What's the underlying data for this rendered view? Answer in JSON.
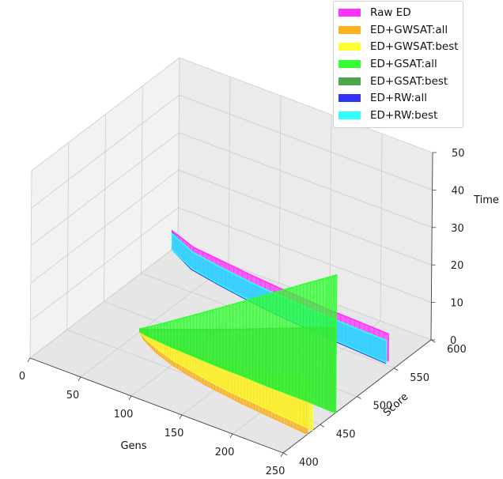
{
  "chart_data": {
    "type": "area",
    "projection": "3d",
    "title": "",
    "xlabel": "Gens",
    "ylabel": "Score",
    "zlabel": "Time",
    "xlim": [
      0,
      250
    ],
    "ylim": [
      400,
      600
    ],
    "zlim": [
      0,
      50
    ],
    "xticks": [
      "0",
      "50",
      "100",
      "150",
      "200",
      "250"
    ],
    "yticks": [
      "400",
      "450",
      "500",
      "550",
      "600"
    ],
    "zticks": [
      "0",
      "10",
      "20",
      "30",
      "40",
      "50"
    ],
    "grid": true,
    "legend_position": "top-right",
    "series": [
      {
        "name": "Raw ED",
        "color": "#ff33ff",
        "gens": [
          0,
          30,
          60,
          90,
          120,
          150,
          180,
          210,
          240
        ],
        "score": [
          592,
          580,
          575,
          570,
          566,
          563,
          560,
          558,
          556
        ],
        "time": [
          5.0,
          5.4,
          5.8,
          6.1,
          6.4,
          6.6,
          6.8,
          7.0,
          7.2
        ]
      },
      {
        "name": "ED+GWSAT:all",
        "color": "#ffb21f",
        "gens": [
          50,
          60,
          80,
          100,
          120,
          140,
          160,
          180,
          200,
          220,
          240,
          250
        ],
        "score": [
          480,
          472,
          462,
          455,
          450,
          446,
          443,
          440,
          438,
          436,
          434,
          433
        ],
        "time": [
          0.8,
          1.8,
          3.3,
          4.8,
          6.2,
          7.6,
          9.0,
          10.4,
          11.8,
          13.1,
          14.4,
          15.0
        ]
      },
      {
        "name": "ED+GWSAT:best",
        "color": "#ffff33",
        "gens": [
          50,
          60,
          80,
          100,
          120,
          140,
          160,
          180,
          200,
          220,
          240,
          250
        ],
        "score": [
          480,
          474,
          466,
          460,
          456,
          452,
          449,
          447,
          445,
          443,
          441,
          440
        ],
        "time": [
          0.8,
          1.6,
          2.9,
          4.2,
          5.4,
          6.6,
          7.8,
          9.0,
          10.2,
          11.4,
          12.6,
          13.2
        ]
      },
      {
        "name": "ED+GSAT:all",
        "color": "#33ff33",
        "gens": [
          50,
          60,
          80,
          100,
          120,
          140,
          160,
          180,
          200,
          220,
          240,
          250
        ],
        "score": [
          480,
          478,
          476,
          475,
          474,
          473,
          473,
          472,
          472,
          472,
          471,
          471
        ],
        "time": [
          0.8,
          2.6,
          6.2,
          9.8,
          13.4,
          17.0,
          20.6,
          24.2,
          27.8,
          31.4,
          35.0,
          36.8
        ]
      },
      {
        "name": "ED+GSAT:best",
        "color": "#4ca64c",
        "gens": [
          50,
          60,
          80,
          100,
          120,
          140,
          160,
          180,
          200,
          220,
          240,
          250
        ],
        "score": [
          480,
          478,
          477,
          476,
          475,
          474,
          473,
          473,
          472,
          472,
          471,
          471
        ],
        "time": [
          0.8,
          1.9,
          4.1,
          6.3,
          8.5,
          10.7,
          12.9,
          15.1,
          17.3,
          19.5,
          21.7,
          22.8
        ]
      },
      {
        "name": "ED+RW:all",
        "color": "#3333ff",
        "gens": [
          0,
          30,
          60,
          90,
          120,
          150,
          180,
          210,
          240
        ],
        "score": [
          592,
          577,
          571,
          566,
          562,
          559,
          556,
          554,
          552
        ],
        "time": [
          4.5,
          4.7,
          4.9,
          5.1,
          5.3,
          5.5,
          5.7,
          5.9,
          6.1
        ]
      },
      {
        "name": "ED+RW:best",
        "color": "#33ffff",
        "gens": [
          0,
          30,
          60,
          90,
          120,
          150,
          180,
          210,
          240
        ],
        "score": [
          592,
          578,
          572,
          567,
          563,
          560,
          557,
          555,
          553
        ],
        "time": [
          4.3,
          4.5,
          4.7,
          4.9,
          5.1,
          5.3,
          5.5,
          5.7,
          5.9
        ]
      }
    ]
  }
}
